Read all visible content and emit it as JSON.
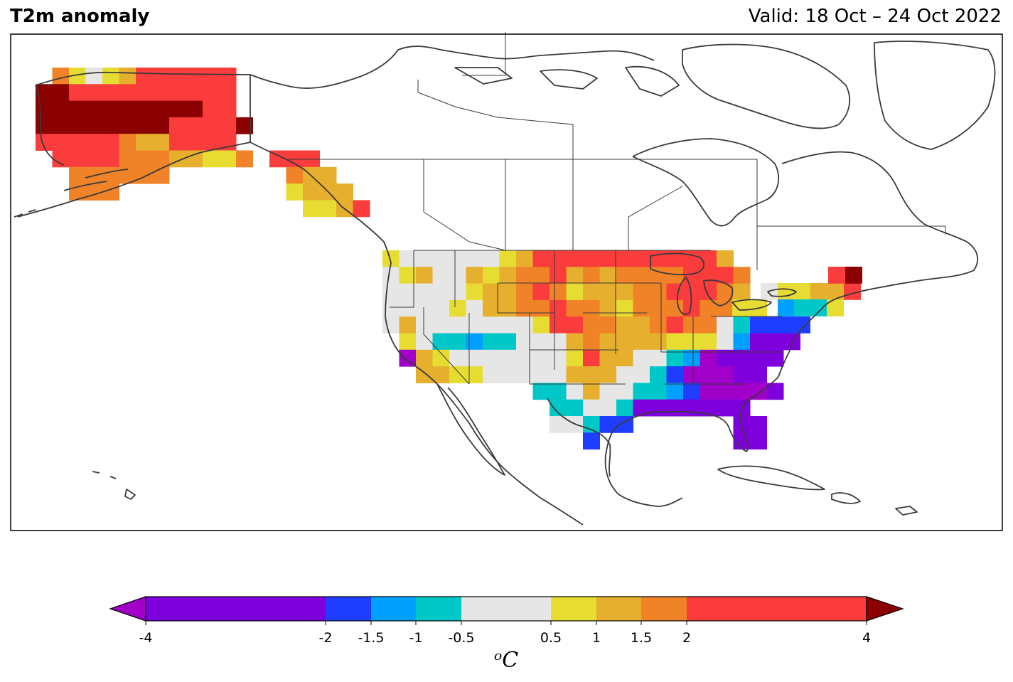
{
  "header": {
    "title": "T2m anomaly",
    "valid": "Valid: 18 Oct – 24 Oct 2022"
  },
  "map_data": {
    "region": "North America",
    "variable": "2 m temperature anomaly",
    "units": "°C",
    "colors": {
      "lt_-2": "#7e00dc",
      "-2_-1.5": "#1f3dff",
      "-1.5_-1": "#00a0ff",
      "-1_-0.5": "#00c8c8",
      "-0.5_0.5": "#e6e6e6",
      "0.5_1": "#e6dc32",
      "1_1.5": "#e6af2d",
      "1.5_2": "#f08228",
      "2_4": "#fa3c3c",
      "gt_4": "#8b0000",
      "lt_-4": "#a000c8"
    },
    "anomaly_summary": [
      {
        "area": "Alaska interior",
        "range": "> 4"
      },
      {
        "area": "Alaska west/north",
        "range": "2 to 4"
      },
      {
        "area": "Upper Midwest / Great Lakes",
        "range": "2 to 4"
      },
      {
        "area": "Northern Plains",
        "range": "1 to 2"
      },
      {
        "area": "Southeast US",
        "range": "< -2"
      },
      {
        "area": "Mid-Atlantic",
        "range": "-2 to -1"
      },
      {
        "area": "Great Basin / Southwest",
        "range": "-0.5 to 0.5"
      },
      {
        "area": "Northern Maine",
        "range": "> 4"
      }
    ]
  },
  "colorbar": {
    "ticks": [
      "-4",
      "-2",
      "-1.5",
      "-1",
      "-0.5",
      "0.5",
      "1",
      "1.5",
      "2",
      "4"
    ],
    "unit_label": "ᵒC",
    "segments": [
      {
        "from": -4,
        "to": -2,
        "color": "#7e00dc"
      },
      {
        "from": -2,
        "to": -1.5,
        "color": "#1f3dff"
      },
      {
        "from": -1.5,
        "to": -1,
        "color": "#00a0ff"
      },
      {
        "from": -1,
        "to": -0.5,
        "color": "#00c8c8"
      },
      {
        "from": -0.5,
        "to": 0.5,
        "color": "#e6e6e6"
      },
      {
        "from": 0.5,
        "to": 1,
        "color": "#e6dc32"
      },
      {
        "from": 1,
        "to": 1.5,
        "color": "#e6af2d"
      },
      {
        "from": 1.5,
        "to": 2,
        "color": "#f08228"
      },
      {
        "from": 2,
        "to": 4,
        "color": "#fa3c3c"
      }
    ],
    "extend_min_color": "#a000c8",
    "extend_max_color": "#8b0000"
  }
}
